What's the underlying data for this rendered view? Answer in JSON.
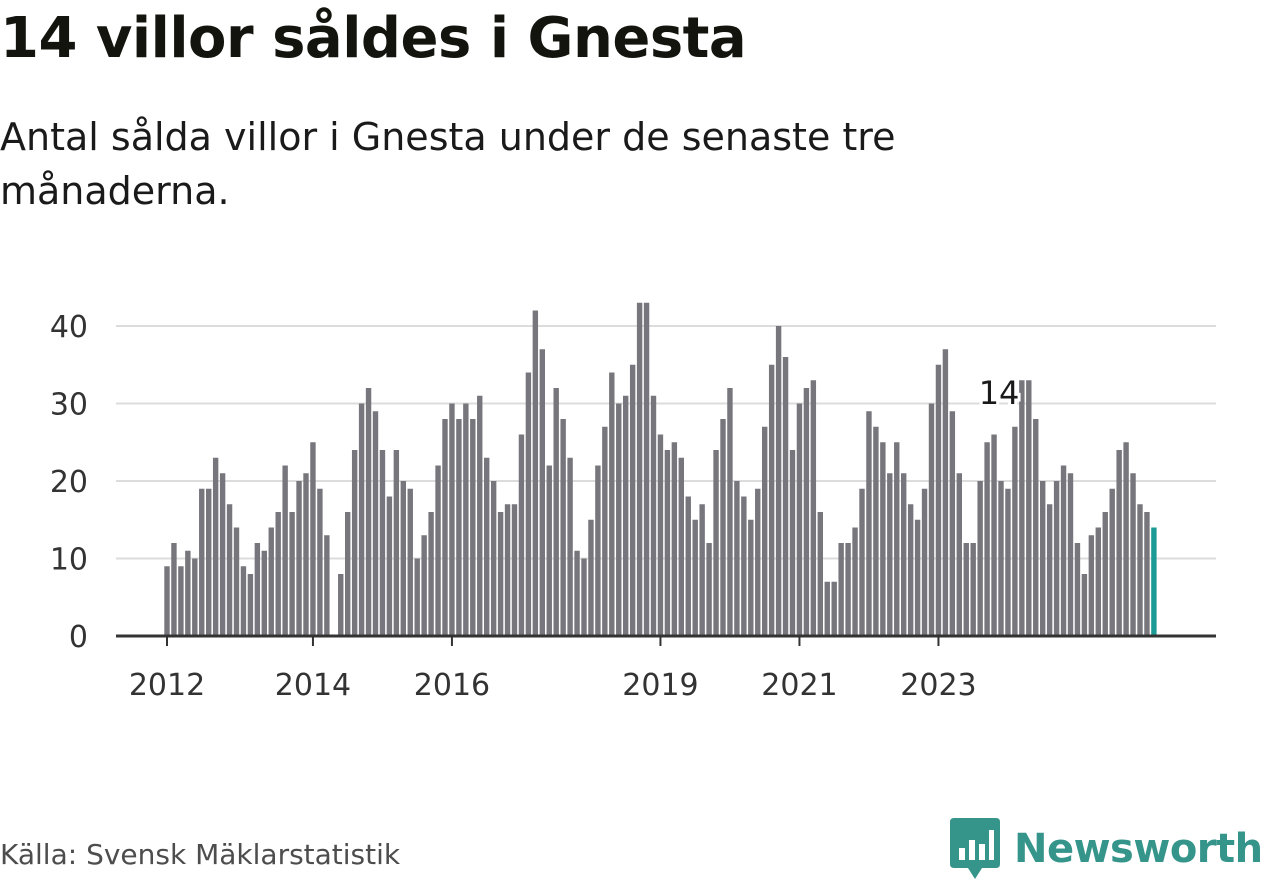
{
  "title": "14 villor såldes i Gnesta",
  "subtitle": "Antal sålda villor i Gnesta under de senaste tre månaderna.",
  "source": "Källa: Svensk Mäklarstatistik",
  "brand": {
    "name": "Newsworthy",
    "icon": "newsworthy-logo-icon"
  },
  "colors": {
    "bar": "#77767c",
    "highlight": "#1c9a95",
    "grid": "#dcdcdc",
    "axis": "#333333",
    "brand": "#36958b"
  },
  "chart_data": {
    "type": "bar",
    "ylim": [
      0,
      45
    ],
    "yticks": [
      0,
      10,
      20,
      30,
      40
    ],
    "x_tick_labels": [
      {
        "label": "2012",
        "index": 0
      },
      {
        "label": "2014",
        "index": 21
      },
      {
        "label": "2016",
        "index": 41
      },
      {
        "label": "2019",
        "index": 71
      },
      {
        "label": "2021",
        "index": 91
      },
      {
        "label": "2023",
        "index": 111
      }
    ],
    "annotation": {
      "text": "14",
      "index": 119
    },
    "values": [
      9,
      12,
      9,
      11,
      10,
      19,
      19,
      23,
      21,
      17,
      14,
      9,
      8,
      12,
      11,
      14,
      16,
      22,
      16,
      20,
      21,
      25,
      19,
      13,
      0,
      8,
      16,
      24,
      30,
      32,
      29,
      24,
      18,
      24,
      20,
      19,
      10,
      13,
      16,
      22,
      28,
      30,
      28,
      30,
      28,
      31,
      23,
      20,
      16,
      17,
      17,
      26,
      34,
      42,
      37,
      22,
      32,
      28,
      23,
      11,
      10,
      15,
      22,
      27,
      34,
      30,
      31,
      35,
      43,
      43,
      31,
      26,
      24,
      25,
      23,
      18,
      15,
      17,
      12,
      24,
      28,
      32,
      20,
      18,
      15,
      19,
      27,
      35,
      40,
      36,
      24,
      30,
      32,
      33,
      16,
      7,
      7,
      12,
      12,
      14,
      19,
      29,
      27,
      25,
      21,
      25,
      21,
      17,
      15,
      19,
      30,
      35,
      37,
      29,
      21,
      12,
      12,
      20,
      25,
      26,
      20,
      19,
      27,
      33,
      33,
      28,
      20,
      17,
      20,
      22,
      21,
      12,
      8,
      13,
      14,
      16,
      19,
      24,
      25,
      21,
      17,
      16,
      14
    ],
    "highlight_last": true
  }
}
